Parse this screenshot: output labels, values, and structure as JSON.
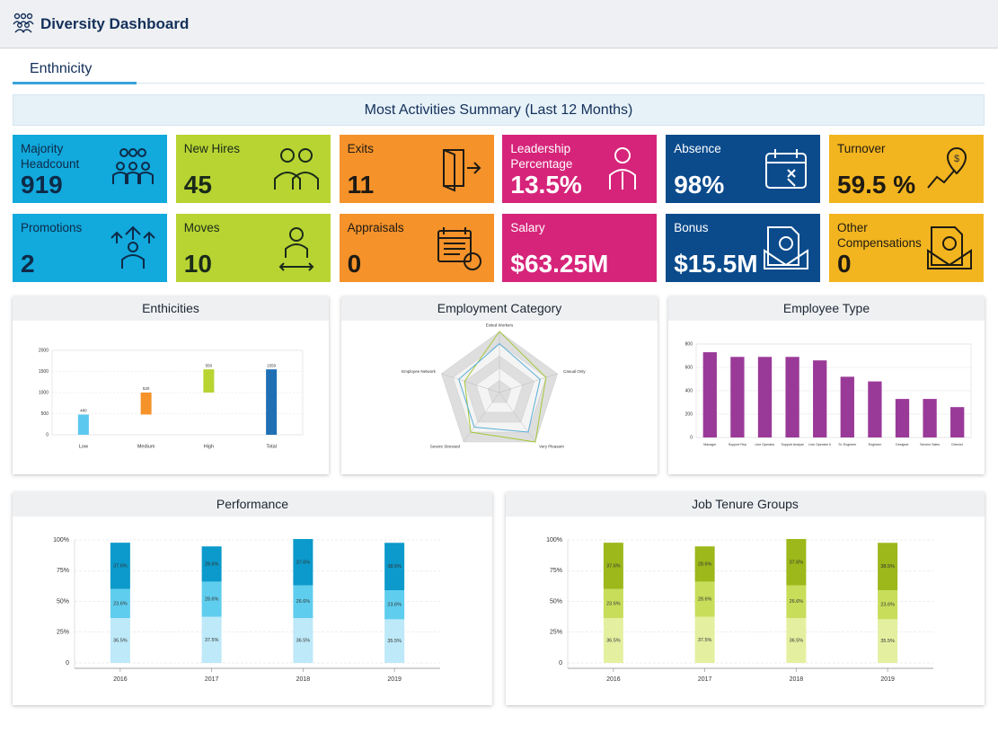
{
  "header": {
    "title": "Diversity Dashboard"
  },
  "tab": "Enthnicity",
  "summary": {
    "title": "Most Activities Summary (Last 12 Months)"
  },
  "kpis": [
    {
      "label": "Majority Headcount",
      "value": "919",
      "color": "#12a9dd",
      "text_color": "#0e2a47"
    },
    {
      "label": "New Hires",
      "value": "45",
      "color": "#b8d432",
      "text_color": "#1a2a1a"
    },
    {
      "label": "Exits",
      "value": "11",
      "color": "#f5922a",
      "text_color": "#1e1a14"
    },
    {
      "label": "Leadership Percentage",
      "value": "13.5%",
      "color": "#d6247a",
      "text_color": "#ffffff"
    },
    {
      "label": "Absence",
      "value": "98%",
      "color": "#0b4b8c",
      "text_color": "#ffffff"
    },
    {
      "label": "Turnover",
      "value": "59.5 %",
      "color": "#f2b51f",
      "text_color": "#1e1a14"
    },
    {
      "label": "Promotions",
      "value": "2",
      "color": "#12a9dd",
      "text_color": "#0e2a47"
    },
    {
      "label": "Moves",
      "value": "10",
      "color": "#b8d432",
      "text_color": "#1a2a1a"
    },
    {
      "label": "Appraisals",
      "value": "0",
      "color": "#f5922a",
      "text_color": "#1e1a14"
    },
    {
      "label": "Salary",
      "value": "$63.25M",
      "color": "#d6247a",
      "text_color": "#ffffff"
    },
    {
      "label": "Bonus",
      "value": "$15.5M",
      "color": "#0b4b8c",
      "text_color": "#ffffff"
    },
    {
      "label": "Other Compensations",
      "value": "0",
      "color": "#f2b51f",
      "text_color": "#1e1a14"
    }
  ],
  "chart_data": [
    {
      "type": "waterfall",
      "title": "Enthicities",
      "categories": [
        "Low",
        "Medium",
        "High",
        "Total"
      ],
      "values": [
        480,
        520,
        550,
        1550
      ],
      "colors": [
        "#5bc8ef",
        "#f5922a",
        "#b8d432",
        "#1f6fb5"
      ],
      "ylim": [
        0,
        2000
      ],
      "yticks": [
        0,
        500,
        1000,
        1500,
        2000
      ],
      "grid": true
    },
    {
      "type": "radar",
      "title": "Employment Category",
      "axes": [
        "Exited Workers",
        "Casual Only",
        "Very Pleasant",
        "Severe Stressed",
        "Employee Network"
      ],
      "series": [
        {
          "color": "#a6c83a",
          "values": [
            5,
            4,
            5,
            4,
            3
          ]
        },
        {
          "color": "#5aaed6",
          "values": [
            4,
            3.5,
            4,
            3.5,
            3.5
          ]
        }
      ],
      "rlim": [
        0,
        5
      ],
      "rticks": [
        1,
        2,
        3,
        4,
        5
      ]
    },
    {
      "type": "bar",
      "title": "Employee Type",
      "categories": [
        "Manager",
        "Support Rep",
        "Line Operator",
        "Support Analyst",
        "Line Operator II",
        "Sr. Engineer",
        "Engineer",
        "Designer",
        "Service Sales",
        "Director"
      ],
      "values": [
        730,
        690,
        690,
        690,
        660,
        520,
        480,
        330,
        330,
        260
      ],
      "color": "#9a3a98",
      "ylim": [
        0,
        800
      ],
      "yticks": [
        0,
        200,
        400,
        600,
        800
      ],
      "grid": true
    },
    {
      "type": "stacked_bar",
      "title": "Performance",
      "categories": [
        "2016",
        "2017",
        "2018",
        "2019"
      ],
      "series": [
        {
          "color": "#bde9f8",
          "values": [
            36.5,
            37.5,
            36.5,
            35.5
          ],
          "value_labels": [
            "36.5%",
            "37.5%",
            "36.5%",
            "35.5%"
          ]
        },
        {
          "color": "#5fcdee",
          "values": [
            23.6,
            28.6,
            26.6,
            23.6
          ],
          "value_labels": [
            "23.6%",
            "28.6%",
            "26.6%",
            "23.6%"
          ]
        },
        {
          "color": "#0b9acb",
          "values": [
            37.6,
            28.6,
            37.6,
            38.5
          ],
          "value_labels": [
            "37.6%",
            "28.6%",
            "37.6%",
            "38.5%"
          ]
        }
      ],
      "ylim": [
        0,
        100
      ],
      "yticks": [
        0,
        {
          "value": 25,
          "label": "25%"
        },
        {
          "value": 50,
          "label": "50%"
        },
        {
          "value": 75,
          "label": "75%"
        },
        {
          "value": 100,
          "label": "100%"
        }
      ],
      "grid": true
    },
    {
      "type": "stacked_bar",
      "title": "Job Tenure Groups",
      "categories": [
        "2016",
        "2017",
        "2018",
        "2019"
      ],
      "series": [
        {
          "color": "#e4f0a0",
          "values": [
            36.5,
            37.5,
            36.5,
            35.5
          ],
          "value_labels": [
            "36.5%",
            "37.5%",
            "36.5%",
            "35.5%"
          ]
        },
        {
          "color": "#c8de5a",
          "values": [
            23.6,
            28.6,
            26.6,
            23.6
          ],
          "value_labels": [
            "23.6%",
            "28.6%",
            "26.6%",
            "23.6%"
          ]
        },
        {
          "color": "#9cb81a",
          "values": [
            37.6,
            28.6,
            37.6,
            38.5
          ],
          "value_labels": [
            "37.6%",
            "28.6%",
            "37.6%",
            "38.5%"
          ]
        }
      ],
      "ylim": [
        0,
        100
      ],
      "yticks": [
        0,
        {
          "value": 25,
          "label": "25%"
        },
        {
          "value": 50,
          "label": "50%"
        },
        {
          "value": 75,
          "label": "75%"
        },
        {
          "value": 100,
          "label": "100%"
        }
      ],
      "grid": true
    }
  ]
}
